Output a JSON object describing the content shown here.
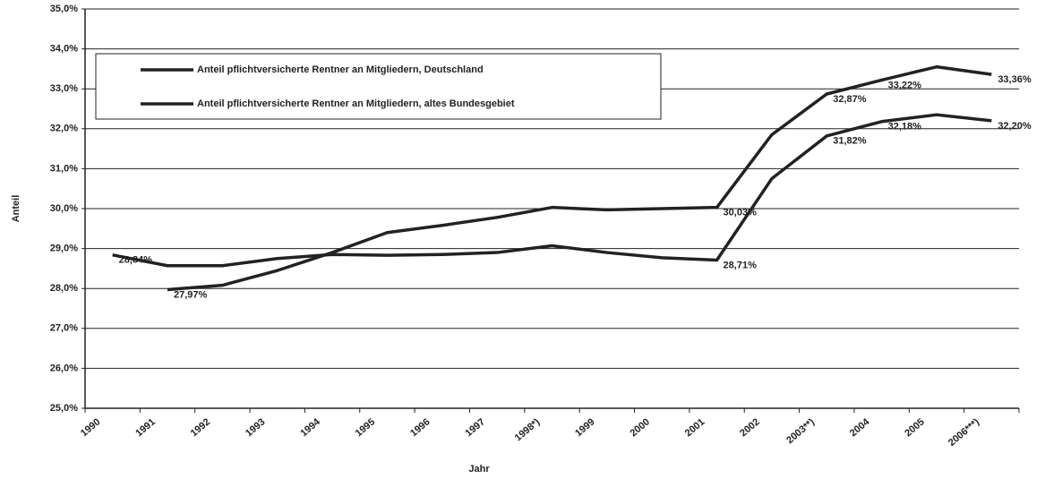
{
  "chart_data": {
    "type": "line",
    "x_label": "Jahr",
    "y_label": "Anteil",
    "categories": [
      "1990",
      "1991",
      "1992",
      "1993",
      "1994",
      "1995",
      "1996",
      "1997",
      "1998*)",
      "1999",
      "2000",
      "2001",
      "2002",
      "2003**)",
      "2004",
      "2005",
      "2006***)"
    ],
    "series": [
      {
        "name": "Anteil pflichtversicherte Rentner an Mitgliedern, Deutschland",
        "color": "#222222",
        "values": [
          null,
          27.97,
          28.08,
          28.45,
          28.9,
          29.4,
          29.58,
          29.78,
          30.03,
          29.97,
          30.0,
          30.03,
          31.85,
          32.87,
          33.22,
          33.55,
          33.36
        ],
        "value_labels": [
          null,
          "27,97%",
          null,
          null,
          null,
          null,
          null,
          null,
          null,
          null,
          null,
          "30,03%",
          null,
          "32,87%",
          "33,22%",
          null,
          "33,36%"
        ]
      },
      {
        "name": "Anteil pflichtversicherte Rentner an Mitgliedern, altes Bundesgebiet",
        "color": "#222222",
        "values": [
          28.84,
          28.57,
          28.57,
          28.75,
          28.85,
          28.83,
          28.85,
          28.9,
          29.07,
          28.9,
          28.77,
          28.71,
          30.75,
          31.82,
          32.18,
          32.35,
          32.2
        ],
        "value_labels": [
          "28,84%",
          null,
          null,
          null,
          null,
          null,
          null,
          null,
          null,
          null,
          null,
          "28,71%",
          null,
          "31,82%",
          "32,18%",
          null,
          "32,20%"
        ]
      }
    ],
    "ylim": [
      25,
      35
    ],
    "yticks": [
      {
        "value": 25,
        "label": "25,0%"
      },
      {
        "value": 26,
        "label": "26,0%"
      },
      {
        "value": 27,
        "label": "27,0%"
      },
      {
        "value": 28,
        "label": "28,0%"
      },
      {
        "value": 29,
        "label": "29,0%"
      },
      {
        "value": 30,
        "label": "30,0%"
      },
      {
        "value": 31,
        "label": "31,0%"
      },
      {
        "value": 32,
        "label": "32,0%"
      },
      {
        "value": 33,
        "label": "33,0%"
      },
      {
        "value": 34,
        "label": "34,0%"
      },
      {
        "value": 35,
        "label": "35,0%"
      }
    ],
    "grid": true,
    "legend": "top-left"
  }
}
